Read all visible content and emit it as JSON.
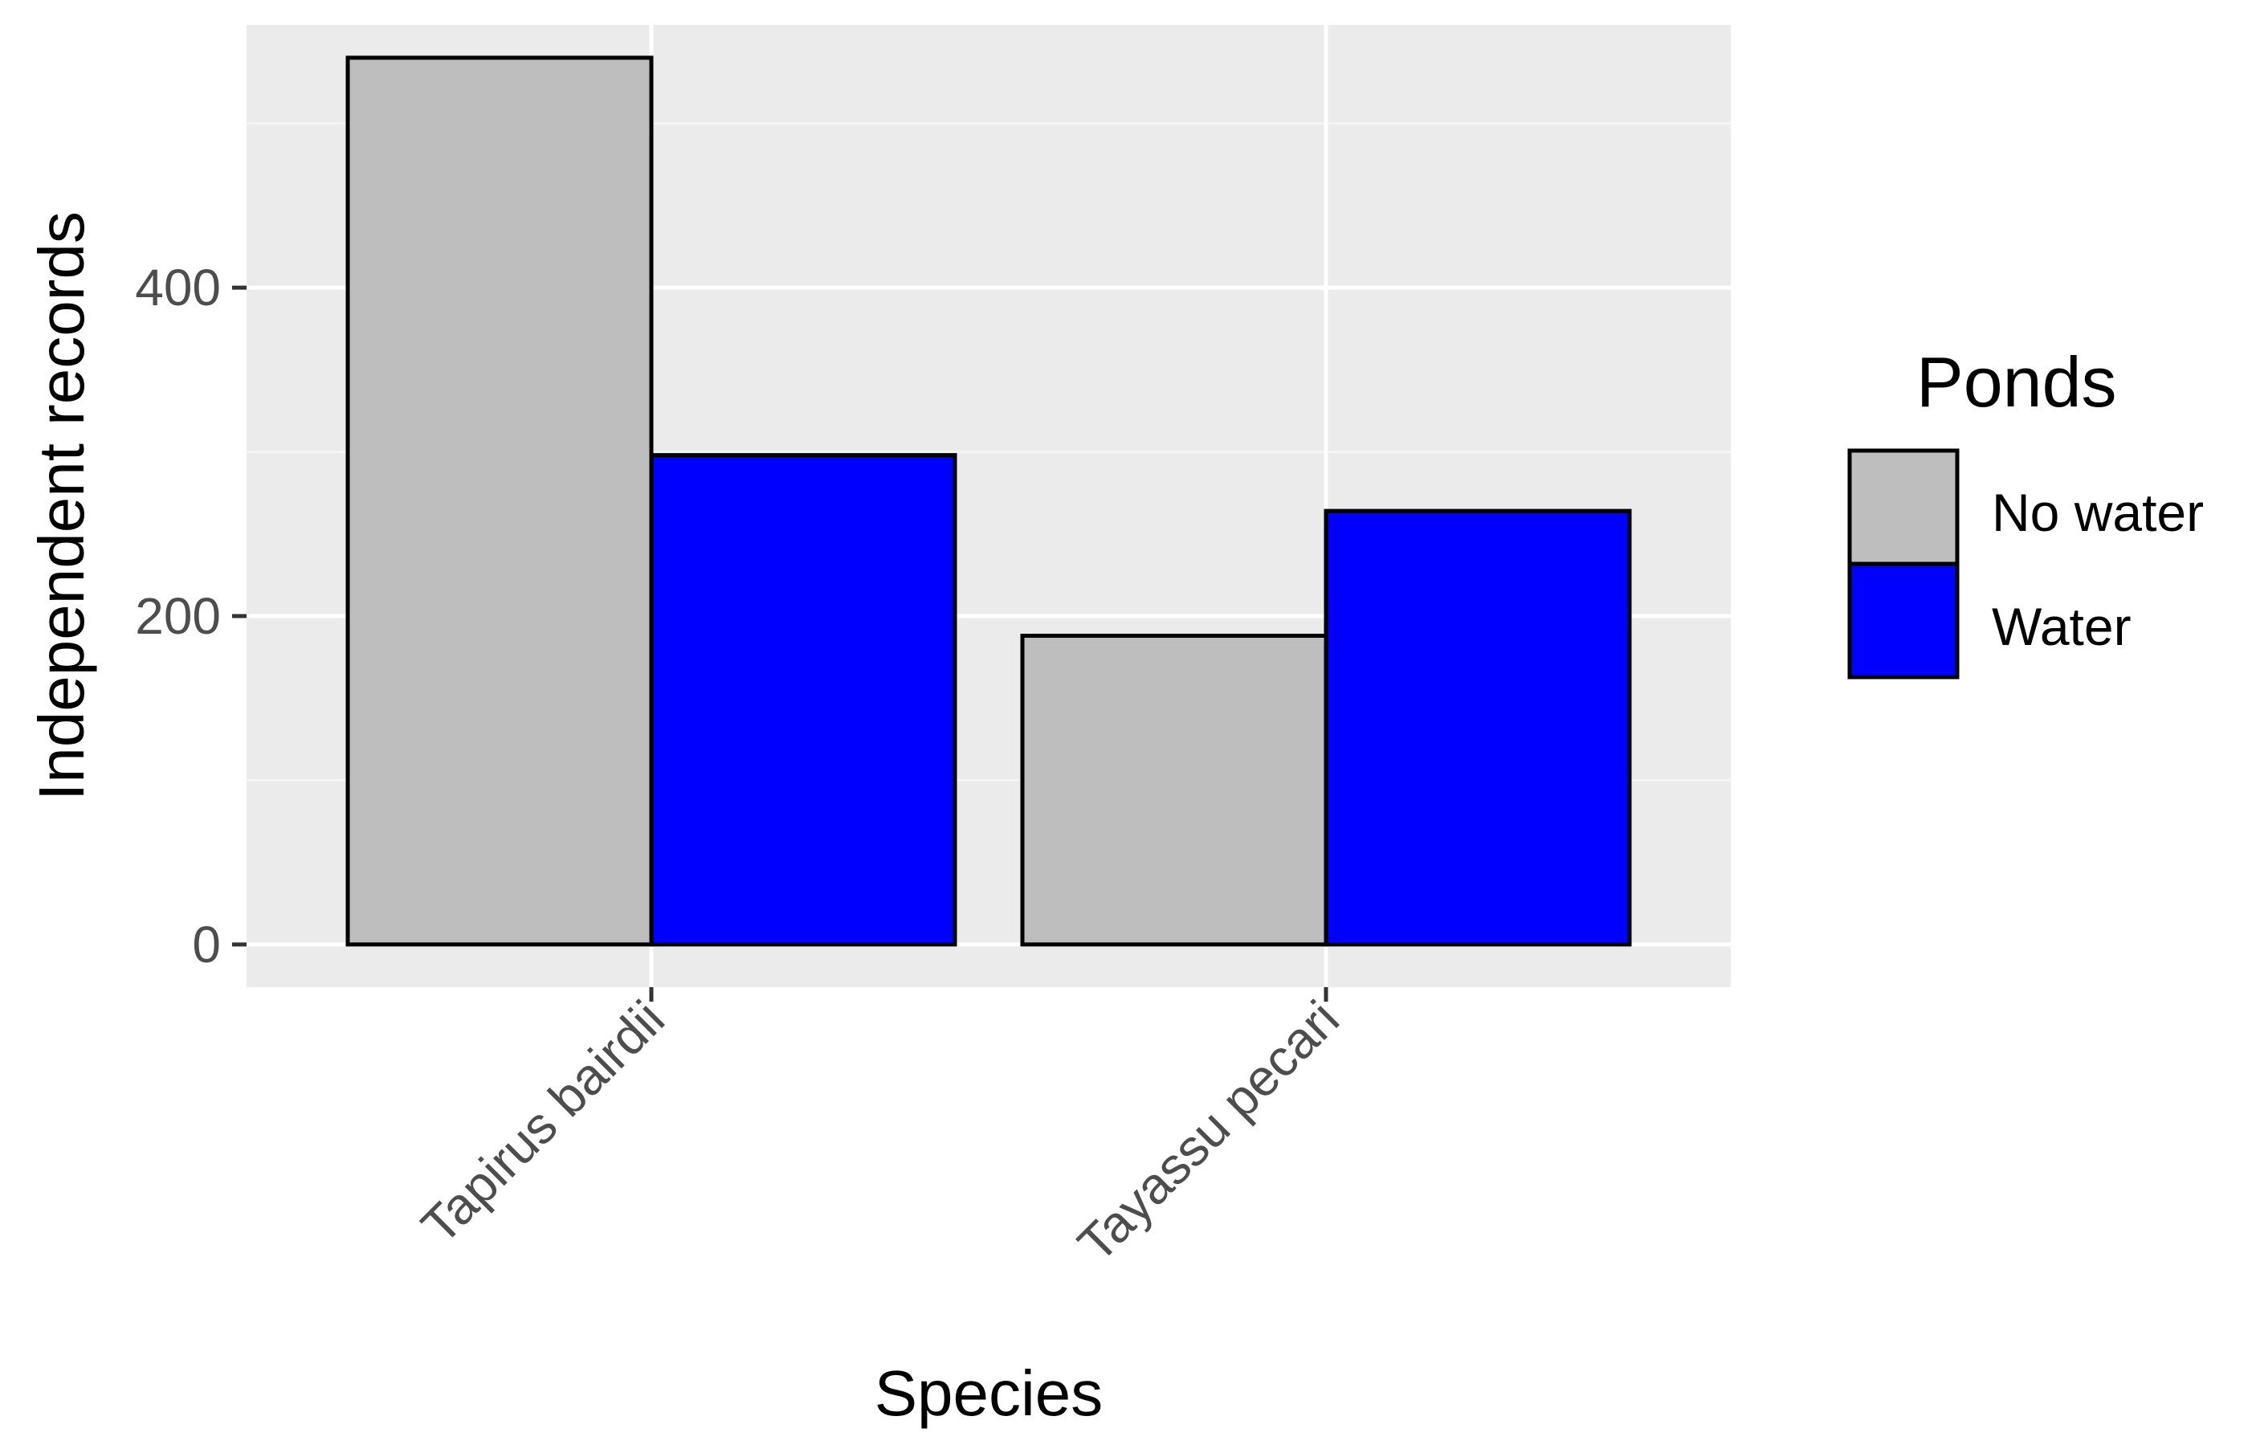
{
  "chart_data": {
    "type": "bar",
    "title": "",
    "xlabel": "Species",
    "ylabel": "Independent records",
    "categories": [
      "Tapirus bairdii",
      "Tayassu pecari"
    ],
    "series": [
      {
        "name": "No water",
        "values": [
          540,
          188
        ],
        "color": "#bebebe"
      },
      {
        "name": "Water",
        "values": [
          298,
          264
        ],
        "color": "#0000ff"
      }
    ],
    "ylim": [
      -26,
      560
    ],
    "yticks": [
      0,
      200,
      400
    ],
    "grid": true,
    "legend": {
      "title": "Ponds",
      "position": "right"
    },
    "colors": {
      "panel_background": "#ebebeb",
      "grid_major": "#ffffff",
      "grid_minor": "#f5f5f5",
      "bar_outline": "#000000"
    }
  }
}
